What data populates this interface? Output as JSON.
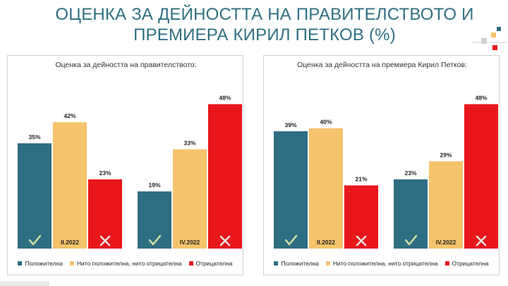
{
  "header": {
    "title_line1": "ОЦЕНКА ЗА ДЕЙНОСТТА НА ПРАВИТЕЛСТВОТО И",
    "title_line2": "ПРЕМИЕРА КИРИЛ ПЕТКОВ (%)"
  },
  "colors": {
    "positive": "#2e6e82",
    "neutral": "#f5c36b",
    "negative": "#e8161b",
    "title": "#2f6f82",
    "check": "#d4dfa6",
    "cross": "#e3e3e3"
  },
  "legend": {
    "positive": "Положителна",
    "neutral": "Нито положителна, нито отрицателна",
    "negative": "Отрицателна"
  },
  "chart_data": [
    {
      "type": "bar",
      "title": "Оценка за дейността на правителството:",
      "categories": [
        "II.2022",
        "IV.2022"
      ],
      "ylim": [
        0,
        50
      ],
      "series": [
        {
          "name": "Положителна",
          "values": [
            35,
            19
          ],
          "labels": [
            "35%",
            "19%"
          ]
        },
        {
          "name": "Нито положителна, нито отрицателна",
          "values": [
            42,
            33
          ],
          "labels": [
            "42%",
            "33%"
          ]
        },
        {
          "name": "Отрицателна",
          "values": [
            23,
            48
          ],
          "labels": [
            "23%",
            "48%"
          ]
        }
      ],
      "legend_position": "bottom",
      "grid": false
    },
    {
      "type": "bar",
      "title": "Оценка за дейността на премиера Кирил Петков:",
      "categories": [
        "II.2022",
        "IV.2022"
      ],
      "ylim": [
        0,
        50
      ],
      "series": [
        {
          "name": "Положителна",
          "values": [
            39,
            23
          ],
          "labels": [
            "39%",
            "23%"
          ]
        },
        {
          "name": "Нито положителна, нито отрицателна",
          "values": [
            40,
            29
          ],
          "labels": [
            "40%",
            "29%"
          ]
        },
        {
          "name": "Отрицателна",
          "values": [
            21,
            48
          ],
          "labels": [
            "21%",
            "48%"
          ]
        }
      ],
      "legend_position": "bottom",
      "grid": false
    }
  ]
}
